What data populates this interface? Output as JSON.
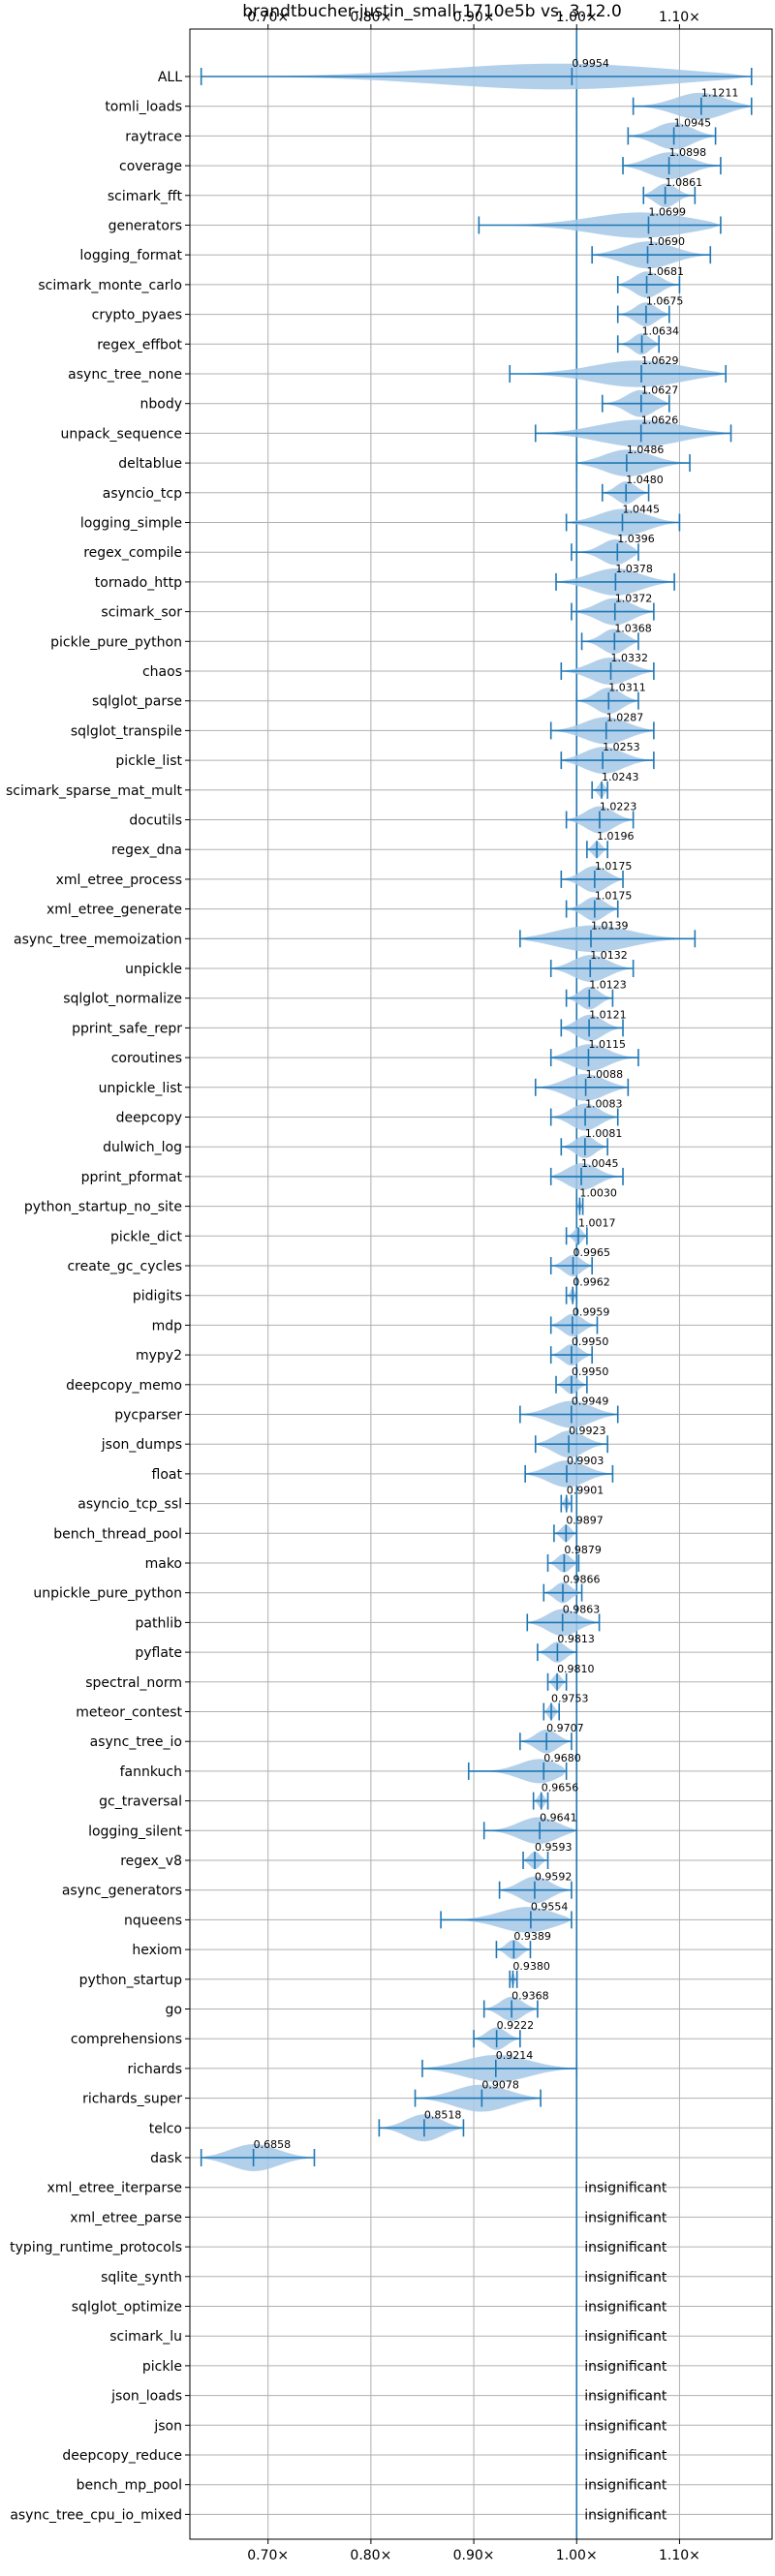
{
  "chart_data": {
    "type": "violin",
    "title": "brandtbucher-justin_small-1710e5b vs. 3.12.0",
    "xlabel": "",
    "ylabel": "",
    "x_ticks": [
      {
        "value": 0.7,
        "label": "0.70×"
      },
      {
        "value": 0.8,
        "label": "0.80×"
      },
      {
        "value": 0.9,
        "label": "0.90×"
      },
      {
        "value": 1.0,
        "label": "1.00×"
      },
      {
        "value": 1.1,
        "label": "1.10×"
      }
    ],
    "xlim": [
      0.624,
      1.19
    ],
    "reference_line": 1.0,
    "grid": true,
    "colors": {
      "line": "#1f77b4",
      "violin": "#a6c8e8",
      "grid": "#b0b0b0"
    },
    "significant": [
      {
        "name": "ALL",
        "value": 0.9954,
        "label": "0.9954",
        "min": 0.635,
        "max": 1.17
      },
      {
        "name": "tomli_loads",
        "value": 1.1211,
        "label": "1.1211",
        "min": 1.055,
        "max": 1.17
      },
      {
        "name": "raytrace",
        "value": 1.0945,
        "label": "1.0945",
        "min": 1.05,
        "max": 1.135
      },
      {
        "name": "coverage",
        "value": 1.0898,
        "label": "1.0898",
        "min": 1.045,
        "max": 1.14
      },
      {
        "name": "scimark_fft",
        "value": 1.0861,
        "label": "1.0861",
        "min": 1.065,
        "max": 1.115
      },
      {
        "name": "generators",
        "value": 1.0699,
        "label": "1.0699",
        "min": 0.905,
        "max": 1.14
      },
      {
        "name": "logging_format",
        "value": 1.069,
        "label": "1.0690",
        "min": 1.015,
        "max": 1.13
      },
      {
        "name": "scimark_monte_carlo",
        "value": 1.0681,
        "label": "1.0681",
        "min": 1.04,
        "max": 1.1
      },
      {
        "name": "crypto_pyaes",
        "value": 1.0675,
        "label": "1.0675",
        "min": 1.04,
        "max": 1.09
      },
      {
        "name": "regex_effbot",
        "value": 1.0634,
        "label": "1.0634",
        "min": 1.04,
        "max": 1.08
      },
      {
        "name": "async_tree_none",
        "value": 1.0629,
        "label": "1.0629",
        "min": 0.935,
        "max": 1.145
      },
      {
        "name": "nbody",
        "value": 1.0627,
        "label": "1.0627",
        "min": 1.025,
        "max": 1.09
      },
      {
        "name": "unpack_sequence",
        "value": 1.0626,
        "label": "1.0626",
        "min": 0.96,
        "max": 1.15
      },
      {
        "name": "deltablue",
        "value": 1.0486,
        "label": "1.0486",
        "min": 1.0,
        "max": 1.11
      },
      {
        "name": "asyncio_tcp",
        "value": 1.048,
        "label": "1.0480",
        "min": 1.025,
        "max": 1.07
      },
      {
        "name": "logging_simple",
        "value": 1.0445,
        "label": "1.0445",
        "min": 0.99,
        "max": 1.1
      },
      {
        "name": "regex_compile",
        "value": 1.0396,
        "label": "1.0396",
        "min": 0.995,
        "max": 1.06
      },
      {
        "name": "tornado_http",
        "value": 1.0378,
        "label": "1.0378",
        "min": 0.98,
        "max": 1.095
      },
      {
        "name": "scimark_sor",
        "value": 1.0372,
        "label": "1.0372",
        "min": 0.995,
        "max": 1.075
      },
      {
        "name": "pickle_pure_python",
        "value": 1.0368,
        "label": "1.0368",
        "min": 1.005,
        "max": 1.06
      },
      {
        "name": "chaos",
        "value": 1.0332,
        "label": "1.0332",
        "min": 0.985,
        "max": 1.075
      },
      {
        "name": "sqlglot_parse",
        "value": 1.0311,
        "label": "1.0311",
        "min": 1.0,
        "max": 1.06
      },
      {
        "name": "sqlglot_transpile",
        "value": 1.0287,
        "label": "1.0287",
        "min": 0.975,
        "max": 1.075
      },
      {
        "name": "pickle_list",
        "value": 1.0253,
        "label": "1.0253",
        "min": 0.985,
        "max": 1.075
      },
      {
        "name": "scimark_sparse_mat_mult",
        "value": 1.0243,
        "label": "1.0243",
        "min": 1.015,
        "max": 1.03
      },
      {
        "name": "docutils",
        "value": 1.0223,
        "label": "1.0223",
        "min": 0.99,
        "max": 1.055
      },
      {
        "name": "regex_dna",
        "value": 1.0196,
        "label": "1.0196",
        "min": 1.01,
        "max": 1.03
      },
      {
        "name": "xml_etree_process",
        "value": 1.0175,
        "label": "1.0175",
        "min": 0.985,
        "max": 1.045
      },
      {
        "name": "xml_etree_generate",
        "value": 1.0175,
        "label": "1.0175",
        "min": 0.99,
        "max": 1.04
      },
      {
        "name": "async_tree_memoization",
        "value": 1.0139,
        "label": "1.0139",
        "min": 0.945,
        "max": 1.115
      },
      {
        "name": "unpickle",
        "value": 1.0132,
        "label": "1.0132",
        "min": 0.975,
        "max": 1.055
      },
      {
        "name": "sqlglot_normalize",
        "value": 1.0123,
        "label": "1.0123",
        "min": 0.99,
        "max": 1.035
      },
      {
        "name": "pprint_safe_repr",
        "value": 1.0121,
        "label": "1.0121",
        "min": 0.985,
        "max": 1.045
      },
      {
        "name": "coroutines",
        "value": 1.0115,
        "label": "1.0115",
        "min": 0.975,
        "max": 1.06
      },
      {
        "name": "unpickle_list",
        "value": 1.0088,
        "label": "1.0088",
        "min": 0.96,
        "max": 1.05
      },
      {
        "name": "deepcopy",
        "value": 1.0083,
        "label": "1.0083",
        "min": 0.975,
        "max": 1.04
      },
      {
        "name": "dulwich_log",
        "value": 1.0081,
        "label": "1.0081",
        "min": 0.985,
        "max": 1.03
      },
      {
        "name": "pprint_pformat",
        "value": 1.0045,
        "label": "1.0045",
        "min": 0.975,
        "max": 1.045
      },
      {
        "name": "python_startup_no_site",
        "value": 1.003,
        "label": "1.0030",
        "min": 1.0,
        "max": 1.006
      },
      {
        "name": "pickle_dict",
        "value": 1.0017,
        "label": "1.0017",
        "min": 0.99,
        "max": 1.01
      },
      {
        "name": "create_gc_cycles",
        "value": 0.9965,
        "label": "0.9965",
        "min": 0.975,
        "max": 1.015
      },
      {
        "name": "pidigits",
        "value": 0.9962,
        "label": "0.9962",
        "min": 0.99,
        "max": 1.0
      },
      {
        "name": "mdp",
        "value": 0.9959,
        "label": "0.9959",
        "min": 0.975,
        "max": 1.02
      },
      {
        "name": "mypy2",
        "value": 0.995,
        "label": "0.9950",
        "min": 0.975,
        "max": 1.015
      },
      {
        "name": "deepcopy_memo",
        "value": 0.995,
        "label": "0.9950",
        "min": 0.98,
        "max": 1.01
      },
      {
        "name": "pycparser",
        "value": 0.9949,
        "label": "0.9949",
        "min": 0.945,
        "max": 1.04
      },
      {
        "name": "json_dumps",
        "value": 0.9923,
        "label": "0.9923",
        "min": 0.96,
        "max": 1.03
      },
      {
        "name": "float",
        "value": 0.9903,
        "label": "0.9903",
        "min": 0.95,
        "max": 1.035
      },
      {
        "name": "asyncio_tcp_ssl",
        "value": 0.9901,
        "label": "0.9901",
        "min": 0.985,
        "max": 0.995
      },
      {
        "name": "bench_thread_pool",
        "value": 0.9897,
        "label": "0.9897",
        "min": 0.978,
        "max": 1.0
      },
      {
        "name": "mako",
        "value": 0.9879,
        "label": "0.9879",
        "min": 0.972,
        "max": 1.002
      },
      {
        "name": "unpickle_pure_python",
        "value": 0.9866,
        "label": "0.9866",
        "min": 0.968,
        "max": 1.005
      },
      {
        "name": "pathlib",
        "value": 0.9863,
        "label": "0.9863",
        "min": 0.952,
        "max": 1.022
      },
      {
        "name": "pyflate",
        "value": 0.9813,
        "label": "0.9813",
        "min": 0.962,
        "max": 1.0
      },
      {
        "name": "spectral_norm",
        "value": 0.981,
        "label": "0.9810",
        "min": 0.972,
        "max": 0.99
      },
      {
        "name": "meteor_contest",
        "value": 0.9753,
        "label": "0.9753",
        "min": 0.968,
        "max": 0.983
      },
      {
        "name": "async_tree_io",
        "value": 0.9707,
        "label": "0.9707",
        "min": 0.945,
        "max": 0.995
      },
      {
        "name": "fannkuch",
        "value": 0.968,
        "label": "0.9680",
        "min": 0.895,
        "max": 0.99
      },
      {
        "name": "gc_traversal",
        "value": 0.9656,
        "label": "0.9656",
        "min": 0.958,
        "max": 0.972
      },
      {
        "name": "logging_silent",
        "value": 0.9641,
        "label": "0.9641",
        "min": 0.91,
        "max": 1.0
      },
      {
        "name": "regex_v8",
        "value": 0.9593,
        "label": "0.9593",
        "min": 0.948,
        "max": 0.972
      },
      {
        "name": "async_generators",
        "value": 0.9592,
        "label": "0.9592",
        "min": 0.925,
        "max": 0.995
      },
      {
        "name": "nqueens",
        "value": 0.9554,
        "label": "0.9554",
        "min": 0.868,
        "max": 0.995
      },
      {
        "name": "hexiom",
        "value": 0.9389,
        "label": "0.9389",
        "min": 0.922,
        "max": 0.955
      },
      {
        "name": "python_startup",
        "value": 0.938,
        "label": "0.9380",
        "min": 0.935,
        "max": 0.942
      },
      {
        "name": "go",
        "value": 0.9368,
        "label": "0.9368",
        "min": 0.91,
        "max": 0.962
      },
      {
        "name": "comprehensions",
        "value": 0.9222,
        "label": "0.9222",
        "min": 0.9,
        "max": 0.945
      },
      {
        "name": "richards",
        "value": 0.9214,
        "label": "0.9214",
        "min": 0.85,
        "max": 1.0
      },
      {
        "name": "richards_super",
        "value": 0.9078,
        "label": "0.9078",
        "min": 0.843,
        "max": 0.965
      },
      {
        "name": "telco",
        "value": 0.8518,
        "label": "0.8518",
        "min": 0.808,
        "max": 0.89
      },
      {
        "name": "dask",
        "value": 0.6858,
        "label": "0.6858",
        "min": 0.635,
        "max": 0.745
      }
    ],
    "insignificant_label": "insignificant",
    "insignificant": [
      "xml_etree_iterparse",
      "xml_etree_parse",
      "typing_runtime_protocols",
      "sqlite_synth",
      "sqlglot_optimize",
      "scimark_lu",
      "pickle",
      "json_loads",
      "json",
      "deepcopy_reduce",
      "bench_mp_pool",
      "async_tree_cpu_io_mixed"
    ]
  }
}
